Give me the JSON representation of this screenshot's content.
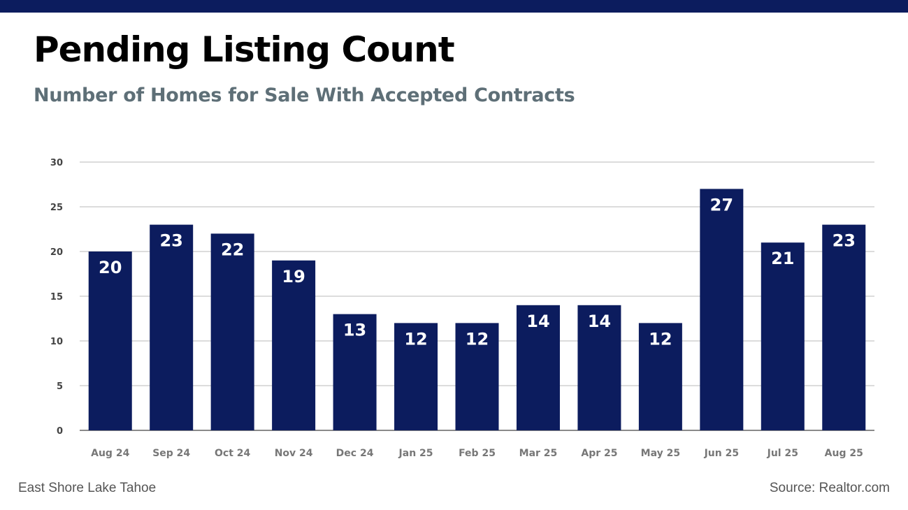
{
  "header": {
    "title": "Pending Listing Count",
    "subtitle": "Number of Homes for Sale With Accepted Contracts"
  },
  "footer": {
    "location": "East Shore Lake Tahoe",
    "source": "Source: Realtor.com"
  },
  "colors": {
    "bar": "#0c1c5e",
    "top_bar": "#0c1c5e",
    "subtitle": "#5e6f77",
    "grid": "#b8b8b8",
    "tick_label": "#777777"
  },
  "chart_data": {
    "type": "bar",
    "title": "",
    "xlabel": "",
    "ylabel": "",
    "categories": [
      "Aug 24",
      "Sep 24",
      "Oct 24",
      "Nov 24",
      "Dec 24",
      "Jan 25",
      "Feb 25",
      "Mar 25",
      "Apr 25",
      "May 25",
      "Jun 25",
      "Jul 25",
      "Aug 25"
    ],
    "values": [
      20,
      23,
      22,
      19,
      13,
      12,
      12,
      14,
      14,
      12,
      27,
      21,
      23
    ],
    "ylim": [
      0,
      30
    ],
    "yticks": [
      0,
      5,
      10,
      15,
      20,
      25,
      30
    ],
    "grid": true,
    "data_labels": true
  }
}
